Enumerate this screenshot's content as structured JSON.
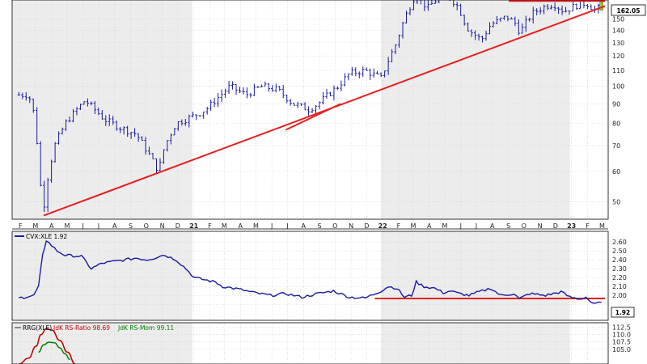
{
  "chart_data": [
    {
      "panel": "price",
      "type": "ohlc",
      "y_scale": "log",
      "ylim": [
        45,
        168
      ],
      "y_ticks": [
        50,
        60,
        70,
        80,
        90,
        100,
        110,
        120,
        130,
        140,
        150
      ],
      "last_value": "162.05",
      "x_tick_labels": [
        "F",
        "M",
        "A",
        "M",
        "J",
        "J",
        "A",
        "S",
        "O",
        "N",
        "D",
        "21",
        "F",
        "M",
        "A",
        "M",
        "J",
        "J",
        "A",
        "S",
        "O",
        "N",
        "D",
        "22",
        "F",
        "M",
        "A",
        "M",
        "J",
        "J",
        "A",
        "S",
        "O",
        "N",
        "D",
        "23",
        "F",
        "M"
      ],
      "close_series": {
        "dates": [
          "2020-02-01",
          "2020-02-20",
          "2020-03-01",
          "2020-03-10",
          "2020-03-18",
          "2020-03-25",
          "2020-04-10",
          "2020-05-01",
          "2020-06-08",
          "2020-07-15",
          "2020-08-15",
          "2020-09-15",
          "2020-10-28",
          "2020-11-09",
          "2020-12-01",
          "2021-01-15",
          "2021-02-01",
          "2021-02-25",
          "2021-03-15",
          "2021-04-15",
          "2021-05-15",
          "2021-06-15",
          "2021-07-15",
          "2021-08-15",
          "2021-09-01",
          "2021-10-10",
          "2021-11-01",
          "2021-12-01",
          "2022-01-01",
          "2022-01-31",
          "2022-02-15",
          "2022-03-01",
          "2022-03-08",
          "2022-04-01",
          "2022-05-01",
          "2022-05-15",
          "2022-06-01",
          "2022-06-08",
          "2022-06-20",
          "2022-07-14",
          "2022-08-01",
          "2022-09-01",
          "2022-09-20",
          "2022-09-26",
          "2022-10-20",
          "2022-11-15",
          "2022-12-01",
          "2022-12-20",
          "2023-01-15",
          "2023-02-01",
          "2023-02-20",
          "2023-03-03"
        ],
        "values": [
          95,
          95,
          85,
          65,
          45,
          55,
          70,
          80,
          92,
          82,
          78,
          75,
          60,
          70,
          80,
          85,
          88,
          95,
          100,
          95,
          100,
          98,
          90,
          87,
          90,
          100,
          108,
          110,
          105,
          130,
          150,
          165,
          173,
          160,
          175,
          170,
          160,
          150,
          140,
          132,
          145,
          152,
          145,
          138,
          155,
          162,
          164,
          157,
          163,
          165,
          158,
          162
        ]
      },
      "trendlines": [
        {
          "from": {
            "date": "2020-03-20",
            "value": 46
          },
          "to": {
            "date": "2023-03-10",
            "value": 162
          }
        },
        {
          "from": {
            "date": "2021-07-01",
            "value": 77
          },
          "to": {
            "date": "2021-10-15",
            "value": 90
          }
        },
        {
          "from": {
            "date": "2022-09-05",
            "value": 167
          },
          "to": {
            "date": "2023-03-10",
            "value": 167
          }
        }
      ]
    },
    {
      "panel": "relative-strength",
      "type": "line",
      "legend": "CVX:XLE 1.92",
      "ylim": [
        1.72,
        2.72
      ],
      "y_ticks": [
        1.9,
        2.0,
        2.1,
        2.2,
        2.3,
        2.4,
        2.5,
        2.6
      ],
      "y_tick_labels": [
        "",
        "2.00",
        "2.10",
        "2.20",
        "2.30",
        "2.40",
        "2.50",
        "2.60"
      ],
      "last_value": "1.92",
      "series": [
        {
          "x": [
            "2020-02-01",
            "2020-03-01",
            "2020-03-10",
            "2020-03-18",
            "2020-03-25",
            "2020-04-15",
            "2020-05-01",
            "2020-06-01",
            "2020-06-20",
            "2020-07-10",
            "2020-09-15",
            "2020-10-05",
            "2020-10-20",
            "2020-11-01",
            "2020-11-10",
            "2020-12-01",
            "2020-12-20",
            "2021-01-05",
            "2021-02-15",
            "2021-03-01",
            "2021-04-01",
            "2021-05-01",
            "2021-06-01",
            "2021-07-01",
            "2021-08-01",
            "2021-09-01",
            "2021-10-01",
            "2021-11-01",
            "2021-12-01",
            "2022-01-01",
            "2022-01-15",
            "2022-02-01",
            "2022-02-15",
            "2022-03-01",
            "2022-03-10",
            "2022-03-25",
            "2022-04-15",
            "2022-05-01",
            "2022-05-15",
            "2022-06-01",
            "2022-06-20",
            "2022-07-10",
            "2022-08-01",
            "2022-08-20",
            "2022-09-15",
            "2022-09-25",
            "2022-10-15",
            "2022-11-15",
            "2022-12-15",
            "2023-01-01",
            "2023-01-20",
            "2023-02-01",
            "2023-02-15",
            "2023-03-03"
          ],
          "y": [
            1.97,
            2.0,
            2.1,
            2.45,
            2.62,
            2.5,
            2.45,
            2.44,
            2.3,
            2.36,
            2.42,
            2.4,
            2.42,
            2.45,
            2.45,
            2.4,
            2.3,
            2.2,
            2.15,
            2.1,
            2.07,
            2.03,
            2.0,
            2.02,
            1.98,
            2.02,
            2.05,
            1.98,
            1.97,
            2.05,
            2.1,
            2.08,
            1.98,
            2.0,
            2.15,
            2.1,
            2.08,
            2.03,
            2.05,
            2.02,
            2.0,
            2.04,
            2.08,
            2.0,
            2.02,
            1.96,
            2.02,
            2.0,
            2.04,
            1.98,
            1.96,
            1.98,
            1.9,
            1.92
          ]
        }
      ],
      "trendlines": [
        {
          "from": {
            "date": "2021-12-20",
            "value": 1.965
          },
          "to": {
            "date": "2023-03-10",
            "value": 1.965
          }
        }
      ]
    },
    {
      "panel": "rrg",
      "type": "line",
      "legend_prefix": "RRG(XLE)",
      "legend_ratio": "JdK RS-Ratio 98.69",
      "legend_momentum": "JdK RS-Mom 99.11",
      "ylim": [
        100,
        114
      ],
      "y_ticks": [
        105.0,
        107.5,
        110.0,
        112.5
      ],
      "y_tick_labels": [
        "105.0",
        "107.5",
        "110.0",
        "112.5"
      ],
      "series": [
        {
          "name": "JdK RS-Ratio",
          "color": "#c00000",
          "x": [
            "2020-02-01",
            "2020-02-20",
            "2020-03-05",
            "2020-03-15",
            "2020-03-25",
            "2020-04-05",
            "2020-04-20",
            "2020-05-05",
            "2020-05-20"
          ],
          "y": [
            100,
            102,
            106,
            110,
            112,
            111.5,
            108,
            104,
            100
          ]
        },
        {
          "name": "JdK RS-Mom",
          "color": "#008000",
          "x": [
            "2020-03-10",
            "2020-03-20",
            "2020-03-30",
            "2020-04-10",
            "2020-04-20",
            "2020-04-30",
            "2020-05-10"
          ],
          "y": [
            104,
            106.5,
            107.4,
            107.2,
            105.5,
            103.5,
            101.5
          ]
        }
      ]
    }
  ],
  "colors": {
    "price_bars": "#1a1aa0",
    "trendline": "#e52020",
    "rs_line": "#1a1aa0",
    "shade": "#ececec",
    "grid": "#d0d0d0"
  }
}
